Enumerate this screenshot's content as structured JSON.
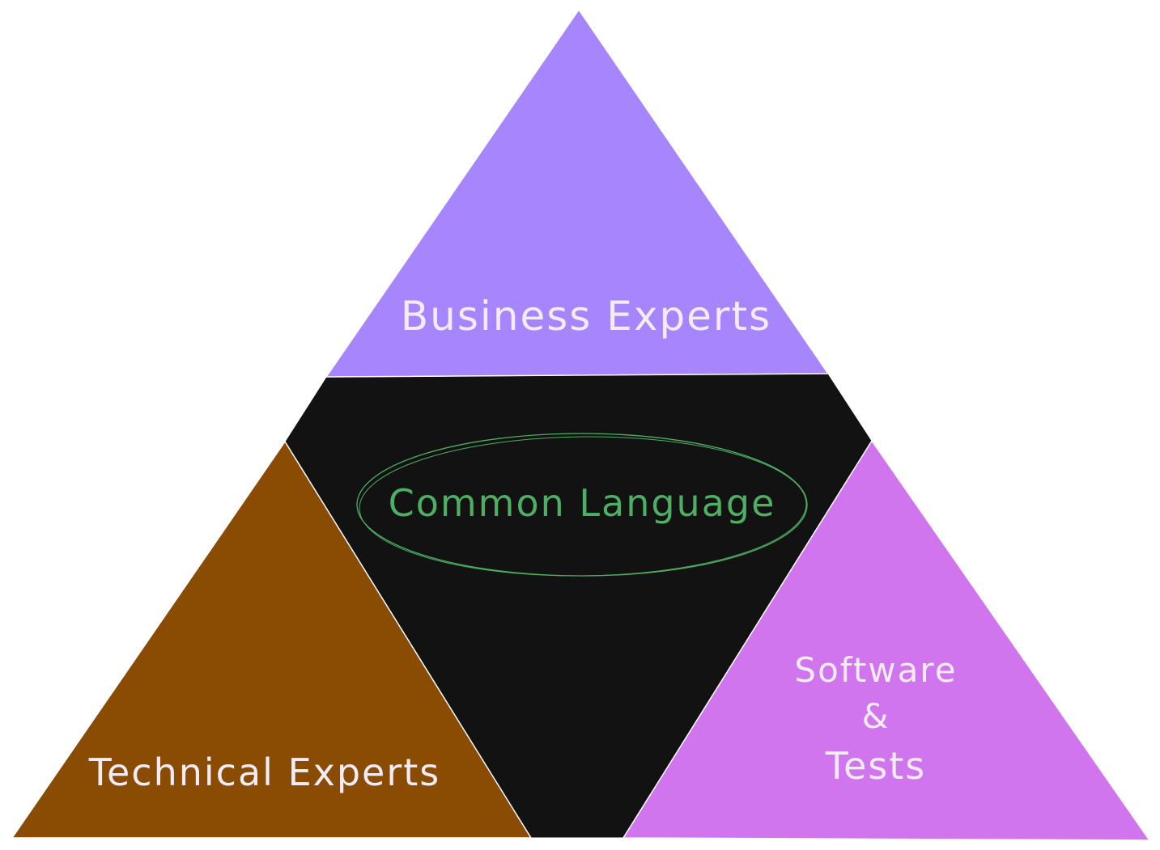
{
  "diagram": {
    "top_label": "Business Experts",
    "center_label": "Common Language",
    "left_label": "Technical Experts",
    "right_label_line1": "Software",
    "right_label_line2": "&",
    "right_label_line3": "Tests"
  },
  "colors": {
    "top_triangle": "#a785fc",
    "center_region": "#121212",
    "left_triangle": "#8a4b02",
    "right_triangle": "#d075ed",
    "center_text": "#4caf63",
    "light_text": "#f3ecf6"
  }
}
